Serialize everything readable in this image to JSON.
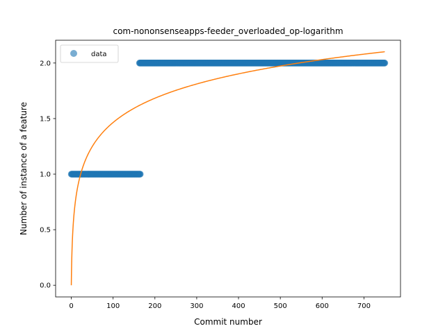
{
  "chart_data": {
    "type": "scatter",
    "title": "com-nononsenseapps-feeder_overloaded_op-logarithm",
    "xlabel": "Commit number",
    "ylabel": "Number of instance of a feature",
    "xlim": [
      -37.5,
      787.5
    ],
    "ylim": [
      -0.105,
      2.205
    ],
    "xticks": [
      0,
      100,
      200,
      300,
      400,
      500,
      600,
      700
    ],
    "yticks": [
      0.0,
      0.5,
      1.0,
      1.5,
      2.0
    ],
    "ytick_labels": [
      "0.0",
      "0.5",
      "1.0",
      "1.5",
      "2.0"
    ],
    "grid": false,
    "legend": {
      "placement": "top-left",
      "entries": [
        "data"
      ]
    },
    "series": [
      {
        "name": "data",
        "kind": "scatter",
        "color": "#1f77b4",
        "segments": [
          {
            "x_start": 0,
            "x_end": 165,
            "y": 1
          },
          {
            "x_start": 163,
            "x_end": 750,
            "y": 2
          }
        ]
      },
      {
        "kind": "line",
        "color": "#ff7f0e",
        "fit": {
          "model": "logarithm",
          "a": 0.3174,
          "b": 1,
          "x_start": 0,
          "x_end": 750
        }
      }
    ]
  }
}
